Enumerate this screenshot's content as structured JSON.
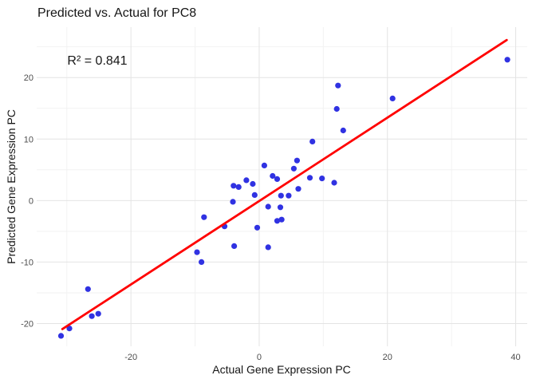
{
  "chart_data": {
    "type": "scatter",
    "title": "Predicted vs. Actual for PC8",
    "annotation": "R² = 0.841",
    "xlabel": "Actual Gene Expression PC",
    "ylabel": "Predicted Gene Expression PC",
    "xlim": [
      -34.7,
      41.8
    ],
    "ylim": [
      -23.7,
      28.2
    ],
    "grid": true,
    "legend": false,
    "x_ticks": {
      "values": [
        -20,
        0,
        20,
        40
      ],
      "labels": [
        "-20",
        "0",
        "20",
        "40"
      ]
    },
    "y_ticks": {
      "values": [
        20,
        10,
        0,
        -10,
        -20
      ],
      "labels": [
        "20",
        "10",
        "0",
        "-10",
        "-20"
      ]
    },
    "x_minor_ticks": [
      -30,
      -10,
      10,
      30
    ],
    "y_minor_ticks": [
      25,
      15,
      5,
      -5,
      -15
    ],
    "points": [
      [
        -30.9,
        -22.0
      ],
      [
        -29.6,
        -20.8
      ],
      [
        -26.7,
        -14.4
      ],
      [
        -26.1,
        -18.8
      ],
      [
        -25.1,
        -18.4
      ],
      [
        -9.7,
        -8.4
      ],
      [
        -9.0,
        -10.0
      ],
      [
        -8.6,
        -2.7
      ],
      [
        -5.4,
        -4.2
      ],
      [
        -4.1,
        -0.2
      ],
      [
        -4.0,
        2.4
      ],
      [
        -3.9,
        -7.4
      ],
      [
        -3.2,
        2.2
      ],
      [
        -2.0,
        3.3
      ],
      [
        -1.0,
        2.7
      ],
      [
        -0.7,
        0.9
      ],
      [
        -0.3,
        -4.4
      ],
      [
        0.8,
        5.7
      ],
      [
        1.4,
        -1.0
      ],
      [
        1.4,
        -7.6
      ],
      [
        2.1,
        4.0
      ],
      [
        2.8,
        3.5
      ],
      [
        2.8,
        -3.3
      ],
      [
        3.3,
        -1.1
      ],
      [
        3.4,
        0.8
      ],
      [
        3.5,
        -3.1
      ],
      [
        4.6,
        0.8
      ],
      [
        5.4,
        5.2
      ],
      [
        5.9,
        6.5
      ],
      [
        6.1,
        1.9
      ],
      [
        7.9,
        3.7
      ],
      [
        8.3,
        9.6
      ],
      [
        9.8,
        3.6
      ],
      [
        11.7,
        2.9
      ],
      [
        12.1,
        14.9
      ],
      [
        12.3,
        18.7
      ],
      [
        13.1,
        11.4
      ],
      [
        20.8,
        16.6
      ],
      [
        38.7,
        22.9
      ]
    ],
    "regression_line": {
      "x1": -30.7,
      "y1": -20.9,
      "x2": 38.6,
      "y2": 26.1
    },
    "colors": {
      "point": "#3032e2",
      "line": "#ff0000",
      "grid_major": "#e4e4e4",
      "grid_minor": "#f2f2f2",
      "tick_text": "#4d4d4d",
      "text": "#161616",
      "background": "#ffffff"
    }
  }
}
